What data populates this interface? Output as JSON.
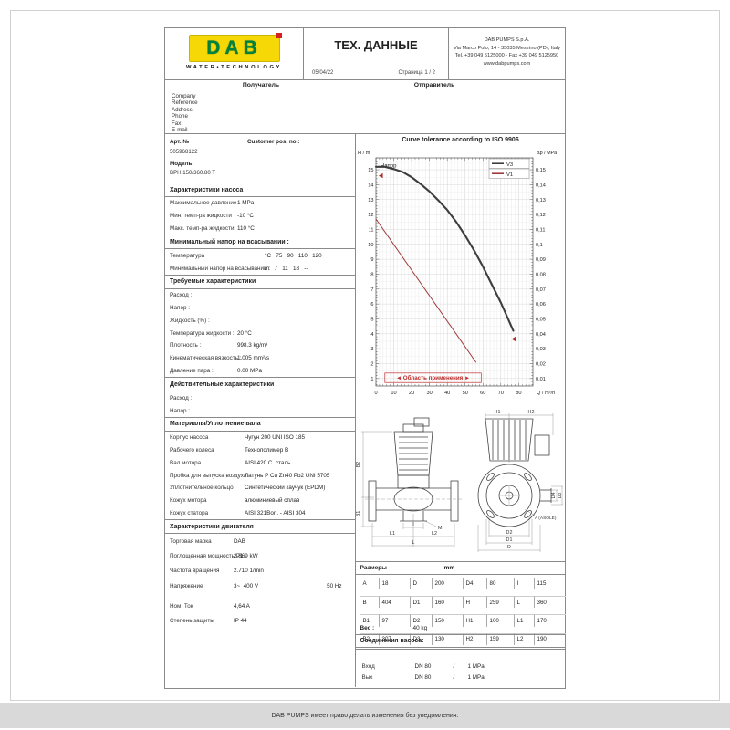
{
  "page": {
    "footer": "DAB PUMPS имеет право делать изменения без уведомления."
  },
  "header": {
    "logo": {
      "brand": "DAB",
      "tagline": "WATER•TECHNOLOGY",
      "bg_color": "#f6d807",
      "brand_color": "#00813e"
    },
    "title": "ТЕХ. ДАННЫЕ",
    "date": "05/04/22",
    "page_label": "Страница 1 / 2",
    "company": [
      "DAB PUMPS S.p.A.",
      "Via Marco Polo, 14 - 35035 Mestrino (PD), Italy",
      "Tel. +39 049 5125000 - Fax +39 049 5125950",
      "www.dabpumps.com"
    ]
  },
  "recipient": {
    "label": "Получатель",
    "fields": [
      "Company",
      "Reference",
      "Address",
      "Phone",
      "Fax",
      "E-mail"
    ]
  },
  "sender": {
    "label": "Отправитель"
  },
  "article": {
    "label": "Арт. №",
    "customer_pos": "Customer pos. no.:",
    "number": "505968122",
    "model_label": "Модель",
    "model": "BPH 150/360.80 T"
  },
  "pump_chars": {
    "title": "Характеристики насоса",
    "rows": [
      [
        "Максимальное давление",
        "1 MPa"
      ],
      [
        "Мин. темп-ра жидкости",
        "-10 °C"
      ],
      [
        "Макс. темп-ра жидкости",
        "110 °C"
      ]
    ]
  },
  "min_head": {
    "title": "Минимальный напор на всасывании :",
    "rows": [
      [
        "Температура",
        [
          "°C",
          "75",
          "90",
          "110",
          "120"
        ]
      ],
      [
        "Минимальный напор на всасывании :",
        [
          "m",
          "7",
          "11",
          "18",
          "--"
        ]
      ]
    ]
  },
  "required": {
    "title": "Требуемые характеристики",
    "rows": [
      [
        "Расход :",
        ""
      ],
      [
        "Напор :",
        ""
      ],
      [
        "Жидкость (%) :",
        ""
      ],
      [
        "Температура жидкости :",
        "20 °C"
      ],
      [
        "Плотность :",
        "998.3 kg/m³"
      ],
      [
        "Кинематическая вязкость :",
        "1.005 mm²/s"
      ],
      [
        "Давление пара :",
        "0.00 MPa"
      ]
    ]
  },
  "actual": {
    "title": "Действительные характеристики",
    "rows": [
      [
        "Расход :",
        ""
      ],
      [
        "Напор :",
        ""
      ]
    ]
  },
  "materials": {
    "title": "Материалы/Уплотнение вала",
    "rows": [
      [
        "Корпус насоса",
        "Чугун 200 UNI ISO 185"
      ],
      [
        "Рабочего колеса",
        "Технополимер B"
      ],
      [
        "Вал мотора",
        "AISI 420 C  сталь"
      ],
      [
        "Пробка для выпуска воздуха",
        "Латунь P Cu Zn40 Pb2 UNI 5705"
      ],
      [
        "Уплотнительное кольцо",
        "Синтетический каучук (EPDM)"
      ],
      [
        "Кожух мотора",
        "алюминиевый сплав"
      ],
      [
        "Кожух статора",
        "AISI 321Bon. - AISI 304"
      ]
    ]
  },
  "motor": {
    "title": "Характеристики двигателя",
    "rows": [
      [
        "Торговая марка",
        "DAB",
        ""
      ],
      [
        "Поглощенная мощность P1",
        "2.869 kW",
        ""
      ],
      [
        "Частота вращения",
        "2.710 1/min",
        ""
      ],
      [
        "Напряжение",
        "3~  400 V",
        "50 Hz"
      ],
      [
        "Ном. Ток",
        "4,64 A",
        ""
      ],
      [
        "Степень защиты",
        "IP 44",
        ""
      ]
    ]
  },
  "chart_data": {
    "type": "line",
    "title": "Curve tolerance according to ISO 9906",
    "ylabel_left": "H / m",
    "ylabel_right": "Δp / MPa",
    "xlabel": "Q / m³/h",
    "inner_label": "Напор",
    "xlim": [
      0,
      88
    ],
    "ylim": [
      0.5,
      15.8
    ],
    "x_ticks": [
      0,
      10,
      20,
      30,
      40,
      50,
      60,
      70,
      80
    ],
    "y_ticks_left": [
      1,
      2,
      3,
      4,
      5,
      6,
      7,
      8,
      9,
      10,
      11,
      12,
      13,
      14,
      15
    ],
    "y_ticks_right": [
      "0,01",
      "0,02",
      "0,03",
      "0,04",
      "0,05",
      "0,06",
      "0,07",
      "0,08",
      "0,09",
      "0,1",
      "0,11",
      "0,12",
      "0,13",
      "0,14",
      "0,15"
    ],
    "grid": true,
    "legend_position": "top-right",
    "legend": [
      {
        "name": "V3",
        "color": "#3d3d3d"
      },
      {
        "name": "V1",
        "color": "#a03a3a"
      }
    ],
    "series": [
      {
        "name": "V3",
        "color": "#3d3d3d",
        "width": 2.1,
        "points": [
          [
            0,
            15.2
          ],
          [
            5,
            15.2
          ],
          [
            10,
            15.05
          ],
          [
            15,
            14.85
          ],
          [
            20,
            14.5
          ],
          [
            25,
            14.05
          ],
          [
            30,
            13.55
          ],
          [
            35,
            12.95
          ],
          [
            40,
            12.3
          ],
          [
            45,
            11.5
          ],
          [
            50,
            10.6
          ],
          [
            55,
            9.6
          ],
          [
            60,
            8.5
          ],
          [
            65,
            7.3
          ],
          [
            70,
            6.1
          ],
          [
            75,
            4.75
          ],
          [
            77,
            4.2
          ]
        ]
      },
      {
        "name": "V1",
        "color": "#a03a3a",
        "width": 1,
        "points": [
          [
            0,
            11.7
          ],
          [
            56,
            2.1
          ]
        ]
      }
    ],
    "markers": [
      {
        "x": 1.5,
        "y": 14.6
      },
      {
        "x": 76,
        "y": 3.65
      }
    ],
    "annotation": {
      "label": "◄ Область применения ►",
      "x_from": 5,
      "x_to": 59,
      "y": 1.05,
      "color": "#c03030"
    }
  },
  "drawing": {
    "b2": "B2",
    "b1": "B1",
    "l1": "L1",
    "l2": "L2",
    "l": "L",
    "i": "I",
    "m": "M",
    "h1": "H1",
    "h2": "H2",
    "d4": "D4",
    "d3": "D3",
    "d2": "D2",
    "d1": "D1",
    "d": "D",
    "a_asole": "A (ASOLE)"
  },
  "dimensions": {
    "title": "Размеры",
    "unit": "mm",
    "rows": [
      [
        "A",
        "18",
        "D",
        "200",
        "D4",
        "80",
        "I",
        "115"
      ],
      [
        "B",
        "404",
        "D1",
        "160",
        "H",
        "259",
        "L",
        "360"
      ],
      [
        "B1",
        "97",
        "D2",
        "150",
        "H1",
        "100",
        "L1",
        "170"
      ],
      [
        "B2",
        "307",
        "D3",
        "130",
        "H2",
        "159",
        "L2",
        "190"
      ]
    ]
  },
  "weight": {
    "label": "Вес :",
    "value": "40 kg"
  },
  "connections": {
    "title": "Соединения насоса:",
    "rows": [
      [
        "Вход",
        "DN 80",
        "/",
        "1 MPa"
      ],
      [
        "Вых",
        "DN 80",
        "/",
        "1 MPa"
      ]
    ]
  }
}
